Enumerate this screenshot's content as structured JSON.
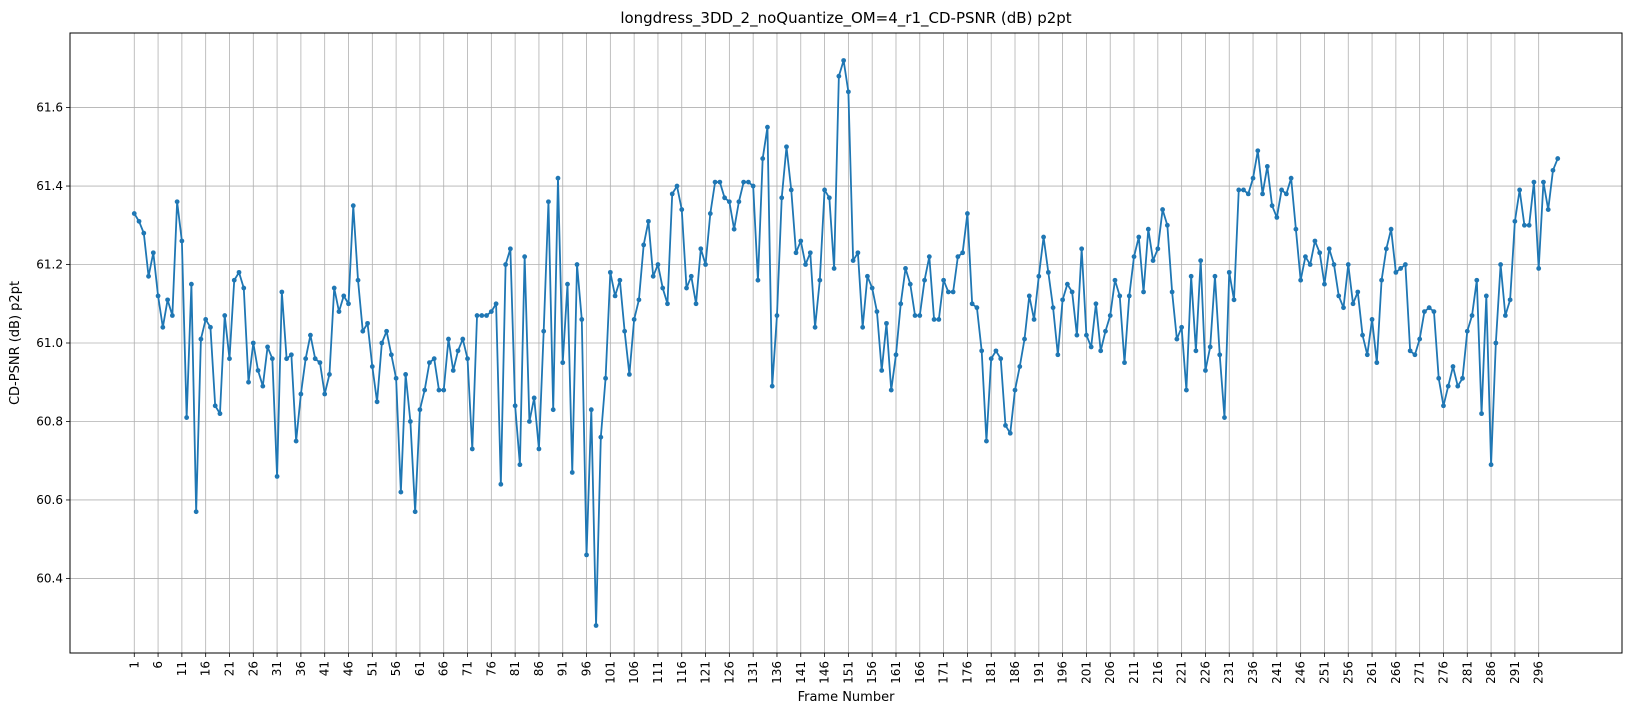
{
  "chart_data": {
    "type": "line",
    "title": "longdress_3DD_2_noQuantize_OM=4_r1_CD-PSNR (dB) p2pt",
    "xlabel": "Frame Number",
    "ylabel": "CD-PSNR (dB) p2pt",
    "xlim": [
      -12.5,
      313.5
    ],
    "ylim": [
      60.21,
      61.79
    ],
    "grid": true,
    "line_color": "#1f77b4",
    "x_ticks": [
      1,
      6,
      11,
      16,
      21,
      26,
      31,
      36,
      41,
      46,
      51,
      56,
      61,
      66,
      71,
      76,
      81,
      86,
      91,
      96,
      101,
      106,
      111,
      116,
      121,
      126,
      131,
      136,
      141,
      146,
      151,
      156,
      161,
      166,
      171,
      176,
      181,
      186,
      191,
      196,
      201,
      206,
      211,
      216,
      221,
      226,
      231,
      236,
      241,
      246,
      251,
      256,
      261,
      266,
      271,
      276,
      281,
      286,
      291,
      296
    ],
    "y_ticks": [
      60.4,
      60.6,
      60.8,
      61.0,
      61.2,
      61.4,
      61.6
    ],
    "y_tick_labels": [
      "60.4",
      "60.6",
      "60.8",
      "61.0",
      "61.2",
      "61.4",
      "61.6"
    ],
    "series": [
      {
        "x_start": 1,
        "values": [
          61.33,
          61.31,
          61.28,
          61.17,
          61.23,
          61.12,
          61.04,
          61.11,
          61.07,
          61.36,
          61.26,
          60.81,
          61.15,
          60.57,
          61.01,
          61.06,
          61.04,
          60.84,
          60.82,
          61.07,
          60.96,
          61.16,
          61.18,
          61.14,
          60.9,
          61.0,
          60.93,
          60.89,
          60.99,
          60.96,
          60.66,
          61.13,
          60.96,
          60.97,
          60.75,
          60.87,
          60.96,
          61.02,
          60.96,
          60.95,
          60.87,
          60.92,
          61.14,
          61.08,
          61.12,
          61.1,
          61.35,
          61.16,
          61.03,
          61.05,
          60.94,
          60.85,
          61.0,
          61.03,
          60.97,
          60.91,
          60.62,
          60.92,
          60.8,
          60.57,
          60.83,
          60.88,
          60.95,
          60.96,
          60.88,
          60.88,
          61.01,
          60.93,
          60.98,
          61.01,
          60.96,
          60.73,
          61.07,
          61.07,
          61.07,
          61.08,
          61.1,
          60.64,
          61.2,
          61.24,
          60.84,
          60.69,
          61.22,
          60.8,
          60.86,
          60.73,
          61.03,
          61.36,
          60.83,
          61.42,
          60.95,
          61.15,
          60.67,
          61.2,
          61.06,
          60.46,
          60.83,
          60.28,
          60.76,
          60.91,
          61.18,
          61.12,
          61.16,
          61.03,
          60.92,
          61.06,
          61.11,
          61.25,
          61.31,
          61.17,
          61.2,
          61.14,
          61.1,
          61.38,
          61.4,
          61.34,
          61.14,
          61.17,
          61.1,
          61.24,
          61.2,
          61.33,
          61.41,
          61.41,
          61.37,
          61.36,
          61.29,
          61.36,
          61.41,
          61.41,
          61.4,
          61.16,
          61.47,
          61.55,
          60.89,
          61.07,
          61.37,
          61.5,
          61.39,
          61.23,
          61.26,
          61.2,
          61.23,
          61.04,
          61.16,
          61.39,
          61.37,
          61.19,
          61.68,
          61.72,
          61.64,
          61.21,
          61.23,
          61.04,
          61.17,
          61.14,
          61.08,
          60.93,
          61.05,
          60.88,
          60.97,
          61.1,
          61.19,
          61.15,
          61.07,
          61.07,
          61.16,
          61.22,
          61.06,
          61.06,
          61.16,
          61.13,
          61.13,
          61.22,
          61.23,
          61.33,
          61.1,
          61.09,
          60.98,
          60.75,
          60.96,
          60.98,
          60.96,
          60.79,
          60.77,
          60.88,
          60.94,
          61.01,
          61.12,
          61.06,
          61.17,
          61.27,
          61.18,
          61.09,
          60.97,
          61.11,
          61.15,
          61.13,
          61.02,
          61.24,
          61.02,
          60.99,
          61.1,
          60.98,
          61.03,
          61.07,
          61.16,
          61.12,
          60.95,
          61.12,
          61.22,
          61.27,
          61.13,
          61.29,
          61.21,
          61.24,
          61.34,
          61.3,
          61.13,
          61.01,
          61.04,
          60.88,
          61.17,
          60.98,
          61.21,
          60.93,
          60.99,
          61.17,
          60.97,
          60.81,
          61.18,
          61.11,
          61.39,
          61.39,
          61.38,
          61.42,
          61.49,
          61.38,
          61.45,
          61.35,
          61.32,
          61.39,
          61.38,
          61.42,
          61.29,
          61.16,
          61.22,
          61.2,
          61.26,
          61.23,
          61.15,
          61.24,
          61.2,
          61.12,
          61.09,
          61.2,
          61.1,
          61.13,
          61.02,
          60.97,
          61.06,
          60.95,
          61.16,
          61.24,
          61.29,
          61.18,
          61.19,
          61.2,
          60.98,
          60.97,
          61.01,
          61.08,
          61.09,
          61.08,
          60.91,
          60.84,
          60.89,
          60.94,
          60.89,
          60.91,
          61.03,
          61.07,
          61.16,
          60.82,
          61.12,
          60.69,
          61.0,
          61.2,
          61.07,
          61.11,
          61.31,
          61.39,
          61.3,
          61.3,
          61.41,
          61.19,
          61.41,
          61.34,
          61.44,
          61.47
        ]
      }
    ]
  }
}
